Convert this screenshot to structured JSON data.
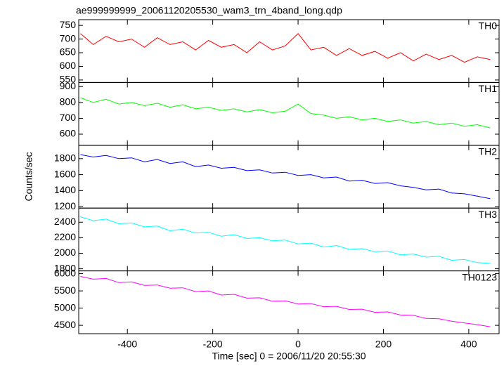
{
  "chart_data": [
    {
      "type": "line",
      "title": "ae999999999_20061120205530_wam3_trn_4band_long.qdp",
      "x": [
        -510,
        -480,
        -450,
        -420,
        -390,
        -360,
        -330,
        -300,
        -270,
        -240,
        -210,
        -180,
        -150,
        -120,
        -90,
        -60,
        -30,
        0,
        30,
        60,
        90,
        120,
        150,
        180,
        210,
        240,
        270,
        300,
        330,
        360,
        390,
        420,
        450
      ],
      "xlim": [
        -514,
        471
      ],
      "xticks": [
        -400,
        -200,
        0,
        200,
        400
      ],
      "ylim": [
        541,
        771
      ],
      "yticks": [
        550,
        600,
        650,
        700,
        750
      ],
      "series": [
        {
          "name": "TH0",
          "color": "#ff0000",
          "values": [
            720,
            680,
            710,
            690,
            700,
            670,
            705,
            680,
            690,
            660,
            695,
            670,
            680,
            650,
            690,
            660,
            675,
            720,
            660,
            670,
            640,
            665,
            640,
            655,
            630,
            650,
            620,
            645,
            625,
            640,
            615,
            635,
            625
          ]
        }
      ]
    },
    {
      "type": "line",
      "x": [
        -510,
        -480,
        -450,
        -420,
        -390,
        -360,
        -330,
        -300,
        -270,
        -240,
        -210,
        -180,
        -150,
        -120,
        -90,
        -60,
        -30,
        0,
        30,
        60,
        90,
        120,
        150,
        180,
        210,
        240,
        270,
        300,
        330,
        360,
        390,
        420,
        450
      ],
      "xlim": [
        -514,
        471
      ],
      "xticks": [
        -400,
        -200,
        0,
        200,
        400
      ],
      "ylim": [
        530,
        926
      ],
      "yticks": [
        600,
        700,
        800,
        900
      ],
      "series": [
        {
          "name": "TH1",
          "color": "#00ff00",
          "values": [
            830,
            800,
            820,
            790,
            800,
            780,
            795,
            770,
            785,
            760,
            770,
            750,
            760,
            740,
            755,
            735,
            745,
            790,
            730,
            720,
            700,
            710,
            690,
            700,
            680,
            690,
            670,
            680,
            660,
            670,
            650,
            660,
            640
          ]
        }
      ]
    },
    {
      "type": "line",
      "ylabel": "Counts/sec",
      "x": [
        -510,
        -480,
        -450,
        -420,
        -390,
        -360,
        -330,
        -300,
        -270,
        -240,
        -210,
        -180,
        -150,
        -120,
        -90,
        -60,
        -30,
        0,
        30,
        60,
        90,
        120,
        150,
        180,
        210,
        240,
        270,
        300,
        330,
        360,
        390,
        420,
        450
      ],
      "xlim": [
        -514,
        471
      ],
      "xticks": [
        -400,
        -200,
        0,
        200,
        400
      ],
      "ylim": [
        1182,
        1967
      ],
      "yticks": [
        1200,
        1400,
        1600,
        1800
      ],
      "series": [
        {
          "name": "TH2",
          "color": "#0000ff",
          "values": [
            1850,
            1820,
            1840,
            1800,
            1810,
            1760,
            1790,
            1740,
            1760,
            1700,
            1720,
            1680,
            1690,
            1650,
            1660,
            1620,
            1630,
            1590,
            1600,
            1560,
            1570,
            1520,
            1530,
            1490,
            1500,
            1460,
            1440,
            1410,
            1420,
            1370,
            1360,
            1330,
            1300
          ]
        }
      ]
    },
    {
      "type": "line",
      "x": [
        -510,
        -480,
        -450,
        -420,
        -390,
        -360,
        -330,
        -300,
        -270,
        -240,
        -210,
        -180,
        -150,
        -120,
        -90,
        -60,
        -30,
        0,
        30,
        60,
        90,
        120,
        150,
        180,
        210,
        240,
        270,
        300,
        330,
        360,
        390,
        420,
        450
      ],
      "xlim": [
        -514,
        471
      ],
      "xticks": [
        -400,
        -200,
        0,
        200,
        400
      ],
      "ylim": [
        1773,
        2582
      ],
      "yticks": [
        1800,
        2000,
        2200,
        2400
      ],
      "series": [
        {
          "name": "TH3",
          "color": "#00ffff",
          "values": [
            2470,
            2420,
            2440,
            2380,
            2390,
            2340,
            2350,
            2290,
            2310,
            2260,
            2270,
            2220,
            2240,
            2190,
            2200,
            2160,
            2170,
            2120,
            2130,
            2080,
            2100,
            2050,
            2060,
            2020,
            2030,
            1980,
            1990,
            1950,
            1960,
            1910,
            1920,
            1880,
            1870
          ]
        }
      ]
    },
    {
      "type": "line",
      "xlabel": "Time [sec] 0 = 2006/11/20 20:55:30",
      "x": [
        -510,
        -480,
        -450,
        -420,
        -390,
        -360,
        -330,
        -300,
        -270,
        -240,
        -210,
        -180,
        -150,
        -120,
        -90,
        -60,
        -30,
        0,
        30,
        60,
        90,
        120,
        150,
        180,
        210,
        240,
        270,
        300,
        330,
        360,
        390,
        420,
        450
      ],
      "xlim": [
        -514,
        471
      ],
      "xticks": [
        -400,
        -200,
        0,
        200,
        400
      ],
      "ylim": [
        4257,
        6081
      ],
      "yticks": [
        4500,
        5000,
        5500,
        6000
      ],
      "series": [
        {
          "name": "TH0123",
          "color": "#ff00ff",
          "values": [
            5920,
            5840,
            5860,
            5740,
            5760,
            5660,
            5670,
            5580,
            5590,
            5480,
            5500,
            5380,
            5400,
            5290,
            5300,
            5200,
            5210,
            5120,
            5130,
            5040,
            5050,
            4960,
            4970,
            4880,
            4890,
            4800,
            4790,
            4700,
            4690,
            4620,
            4570,
            4520,
            4460
          ]
        }
      ]
    }
  ]
}
